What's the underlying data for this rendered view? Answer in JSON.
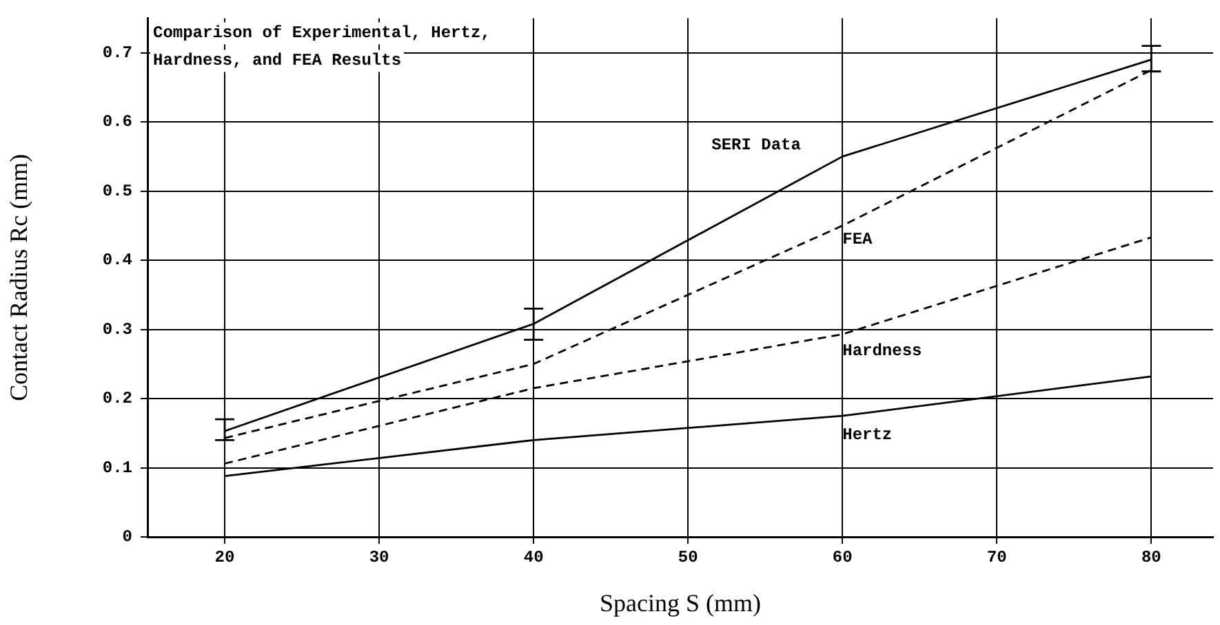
{
  "chart_data": {
    "type": "line",
    "title": "Comparison of Experimental, Hertz, Hardness, and FEA Results",
    "xlabel": "Spacing S (mm)",
    "ylabel": "Contact Radius Rc (mm)",
    "x": [
      20,
      40,
      60,
      80
    ],
    "series": [
      {
        "name": "SERI Data",
        "color": "#000000",
        "values": [
          0.153,
          0.308,
          0.55,
          0.69
        ],
        "errors": [
          [
            0.14,
            0.17
          ],
          [
            0.285,
            0.33
          ],
          null,
          [
            0.673,
            0.71
          ]
        ],
        "line_style": "solid"
      },
      {
        "name": "FEA",
        "color": "#000000",
        "values": [
          0.143,
          0.25,
          0.45,
          0.675
        ],
        "line_style": "dashed"
      },
      {
        "name": "Hardness",
        "color": "#000000",
        "values": [
          0.106,
          0.215,
          0.293,
          0.433
        ],
        "line_style": "dashed"
      },
      {
        "name": "Hertz",
        "color": "#000000",
        "values": [
          0.088,
          0.14,
          0.175,
          0.232
        ],
        "line_style": "solid"
      }
    ],
    "xlim": [
      15,
      84
    ],
    "xticks": [
      20,
      30,
      40,
      50,
      60,
      70,
      80
    ],
    "ylim": [
      0,
      0.75
    ],
    "yticks": [
      0,
      0.1,
      0.2,
      0.3,
      0.4,
      0.5,
      0.6,
      0.7
    ],
    "grid": true,
    "legend": false
  }
}
